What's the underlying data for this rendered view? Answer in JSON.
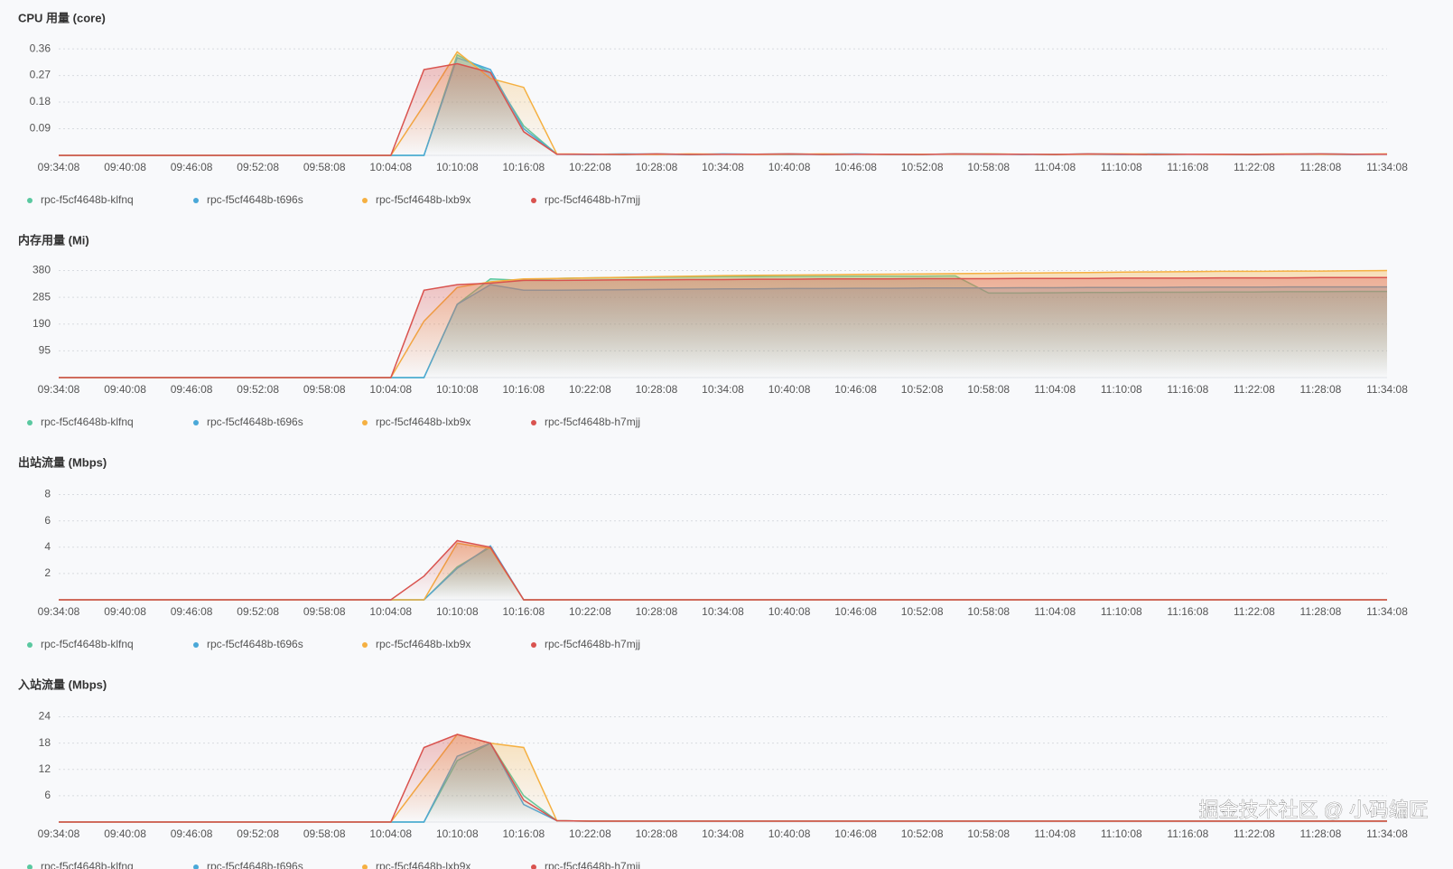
{
  "chart_data": [
    {
      "type": "line",
      "title": "CPU 用量 (core)",
      "categories": [
        "09:34:08",
        null,
        "09:40:08",
        null,
        "09:46:08",
        null,
        "09:52:08",
        null,
        "09:58:08",
        null,
        "10:04:08",
        null,
        "10:10:08",
        null,
        "10:16:08",
        null,
        "10:22:08",
        null,
        "10:28:08",
        null,
        "10:34:08",
        null,
        "10:40:08",
        null,
        "10:46:08",
        null,
        "10:52:08",
        null,
        "10:58:08",
        null,
        "11:04:08",
        null,
        "11:10:08",
        null,
        "11:16:08",
        null,
        "11:22:08",
        null,
        "11:28:08",
        null,
        "11:34:08"
      ],
      "ylim": [
        0,
        0.4
      ],
      "yticks": [
        0.09,
        0.18,
        0.27,
        0.36
      ],
      "grid": true,
      "series": [
        {
          "name": "rpc-f5cf4648b-klfnq",
          "color": "#5ac8a0",
          "values": [
            0,
            0,
            0,
            0,
            0,
            0,
            0,
            0,
            0,
            0,
            0,
            0,
            0.34,
            0.28,
            0.1,
            0.004,
            0.004,
            0.003,
            0.005,
            0.003,
            0.004,
            0.004,
            0.005,
            0.003,
            0.004,
            0.004,
            0.003,
            0.005,
            0.004,
            0.004,
            0.003,
            0.005,
            0.004,
            0.003,
            0.004,
            0.004,
            0.003,
            0.004,
            0.005,
            0.004,
            0.004
          ]
        },
        {
          "name": "rpc-f5cf4648b-t696s",
          "color": "#4aa8d8",
          "values": [
            0,
            0,
            0,
            0,
            0,
            0,
            0,
            0,
            0,
            0,
            0,
            0,
            0.33,
            0.29,
            0.09,
            0.004,
            0.003,
            0.005,
            0.004,
            0.003,
            0.005,
            0.004,
            0.003,
            0.004,
            0.005,
            0.003,
            0.004,
            0.004,
            0.005,
            0.003,
            0.004,
            0.004,
            0.003,
            0.005,
            0.004,
            0.004,
            0.003,
            0.004,
            0.004,
            0.003,
            0.004
          ]
        },
        {
          "name": "rpc-f5cf4648b-lxb9x",
          "color": "#f5b041",
          "values": [
            0,
            0,
            0,
            0,
            0,
            0,
            0,
            0,
            0,
            0,
            0,
            0.17,
            0.35,
            0.26,
            0.23,
            0.005,
            0.004,
            0.004,
            0.003,
            0.005,
            0.004,
            0.003,
            0.004,
            0.005,
            0.004,
            0.003,
            0.004,
            0.004,
            0.005,
            0.004,
            0.003,
            0.004,
            0.005,
            0.004,
            0.004,
            0.003,
            0.004,
            0.005,
            0.004,
            0.004,
            0.005
          ]
        },
        {
          "name": "rpc-f5cf4648b-h7mjj",
          "color": "#d9534f",
          "values": [
            0,
            0,
            0,
            0,
            0,
            0,
            0,
            0,
            0,
            0,
            0,
            0.29,
            0.31,
            0.28,
            0.08,
            0.004,
            0.004,
            0.003,
            0.005,
            0.003,
            0.004,
            0.004,
            0.005,
            0.003,
            0.004,
            0.004,
            0.003,
            0.005,
            0.004,
            0.004,
            0.003,
            0.005,
            0.004,
            0.003,
            0.004,
            0.004,
            0.003,
            0.004,
            0.005,
            0.004,
            0.004
          ]
        }
      ]
    },
    {
      "type": "line",
      "title": "内存用量 (Mi)",
      "categories": [
        "09:34:08",
        null,
        "09:40:08",
        null,
        "09:46:08",
        null,
        "09:52:08",
        null,
        "09:58:08",
        null,
        "10:04:08",
        null,
        "10:10:08",
        null,
        "10:16:08",
        null,
        "10:22:08",
        null,
        "10:28:08",
        null,
        "10:34:08",
        null,
        "10:40:08",
        null,
        "10:46:08",
        null,
        "10:52:08",
        null,
        "10:58:08",
        null,
        "11:04:08",
        null,
        "11:10:08",
        null,
        "11:16:08",
        null,
        "11:22:08",
        null,
        "11:28:08",
        null,
        "11:34:08"
      ],
      "ylim": [
        0,
        420
      ],
      "yticks": [
        95,
        190,
        285,
        380
      ],
      "grid": true,
      "series": [
        {
          "name": "rpc-f5cf4648b-klfnq",
          "color": "#5ac8a0",
          "values": [
            0,
            0,
            0,
            0,
            0,
            0,
            0,
            0,
            0,
            0,
            0,
            0,
            260,
            350,
            345,
            352,
            354,
            355,
            356,
            357,
            358,
            358,
            359,
            359,
            360,
            360,
            360,
            361,
            300,
            300,
            301,
            302,
            302,
            303,
            303,
            304,
            304,
            305,
            305,
            306,
            306
          ]
        },
        {
          "name": "rpc-f5cf4648b-t696s",
          "color": "#4aa8d8",
          "values": [
            0,
            0,
            0,
            0,
            0,
            0,
            0,
            0,
            0,
            0,
            0,
            0,
            260,
            330,
            310,
            310,
            311,
            312,
            313,
            314,
            315,
            315,
            316,
            316,
            317,
            317,
            318,
            318,
            318,
            319,
            319,
            320,
            320,
            320,
            321,
            321,
            321,
            322,
            322,
            322,
            322
          ]
        },
        {
          "name": "rpc-f5cf4648b-lxb9x",
          "color": "#f5b041",
          "values": [
            0,
            0,
            0,
            0,
            0,
            0,
            0,
            0,
            0,
            0,
            0,
            200,
            320,
            340,
            350,
            352,
            354,
            356,
            358,
            360,
            362,
            363,
            364,
            365,
            366,
            367,
            368,
            369,
            370,
            371,
            372,
            373,
            374,
            375,
            376,
            377,
            377,
            378,
            378,
            379,
            380
          ]
        },
        {
          "name": "rpc-f5cf4648b-h7mjj",
          "color": "#d9534f",
          "values": [
            0,
            0,
            0,
            0,
            0,
            0,
            0,
            0,
            0,
            0,
            0,
            310,
            330,
            335,
            345,
            345,
            346,
            347,
            347,
            348,
            348,
            349,
            349,
            350,
            350,
            350,
            351,
            351,
            351,
            352,
            352,
            352,
            353,
            353,
            353,
            354,
            354,
            354,
            355,
            355,
            355
          ]
        }
      ]
    },
    {
      "type": "line",
      "title": "出站流量 (Mbps)",
      "categories": [
        "09:34:08",
        null,
        "09:40:08",
        null,
        "09:46:08",
        null,
        "09:52:08",
        null,
        "09:58:08",
        null,
        "10:04:08",
        null,
        "10:10:08",
        null,
        "10:16:08",
        null,
        "10:22:08",
        null,
        "10:28:08",
        null,
        "10:34:08",
        null,
        "10:40:08",
        null,
        "10:46:08",
        null,
        "10:52:08",
        null,
        "10:58:08",
        null,
        "11:04:08",
        null,
        "11:10:08",
        null,
        "11:16:08",
        null,
        "11:22:08",
        null,
        "11:28:08",
        null,
        "11:34:08"
      ],
      "ylim": [
        0,
        9
      ],
      "yticks": [
        2,
        4,
        6,
        8
      ],
      "grid": true,
      "series": [
        {
          "name": "rpc-f5cf4648b-klfnq",
          "color": "#5ac8a0",
          "values": [
            0,
            0,
            0,
            0,
            0,
            0,
            0,
            0,
            0,
            0,
            0,
            0,
            2.5,
            4,
            0,
            0,
            0,
            0,
            0,
            0,
            0,
            0,
            0,
            0,
            0,
            0,
            0,
            0,
            0,
            0,
            0,
            0,
            0,
            0,
            0,
            0,
            0,
            0,
            0,
            0,
            0
          ]
        },
        {
          "name": "rpc-f5cf4648b-t696s",
          "color": "#4aa8d8",
          "values": [
            0,
            0,
            0,
            0,
            0,
            0,
            0,
            0,
            0,
            0,
            0,
            0,
            2.4,
            4.1,
            0,
            0,
            0,
            0,
            0,
            0,
            0,
            0,
            0,
            0,
            0,
            0,
            0,
            0,
            0,
            0,
            0,
            0,
            0,
            0,
            0,
            0,
            0,
            0,
            0,
            0,
            0
          ]
        },
        {
          "name": "rpc-f5cf4648b-lxb9x",
          "color": "#f5b041",
          "values": [
            0,
            0,
            0,
            0,
            0,
            0,
            0,
            0,
            0,
            0,
            0,
            0,
            4.3,
            3.9,
            0,
            0,
            0,
            0,
            0,
            0,
            0,
            0,
            0,
            0,
            0,
            0,
            0,
            0,
            0,
            0,
            0,
            0,
            0,
            0,
            0,
            0,
            0,
            0,
            0,
            0,
            0
          ]
        },
        {
          "name": "rpc-f5cf4648b-h7mjj",
          "color": "#d9534f",
          "values": [
            0,
            0,
            0,
            0,
            0,
            0,
            0,
            0,
            0,
            0,
            0,
            1.8,
            4.5,
            4,
            0,
            0,
            0,
            0,
            0,
            0,
            0,
            0,
            0,
            0,
            0,
            0,
            0,
            0,
            0,
            0,
            0,
            0,
            0,
            0,
            0,
            0,
            0,
            0,
            0,
            0,
            0
          ]
        }
      ]
    },
    {
      "type": "line",
      "title": "入站流量 (Mbps)",
      "categories": [
        "09:34:08",
        null,
        "09:40:08",
        null,
        "09:46:08",
        null,
        "09:52:08",
        null,
        "09:58:08",
        null,
        "10:04:08",
        null,
        "10:10:08",
        null,
        "10:16:08",
        null,
        "10:22:08",
        null,
        "10:28:08",
        null,
        "10:34:08",
        null,
        "10:40:08",
        null,
        "10:46:08",
        null,
        "10:52:08",
        null,
        "10:58:08",
        null,
        "11:04:08",
        null,
        "11:10:08",
        null,
        "11:16:08",
        null,
        "11:22:08",
        null,
        "11:28:08",
        null,
        "11:34:08"
      ],
      "ylim": [
        0,
        27
      ],
      "yticks": [
        6,
        12,
        18,
        24
      ],
      "grid": true,
      "series": [
        {
          "name": "rpc-f5cf4648b-klfnq",
          "color": "#5ac8a0",
          "values": [
            0,
            0,
            0,
            0,
            0,
            0,
            0,
            0,
            0,
            0,
            0,
            0,
            14,
            18,
            6,
            0.3,
            0.2,
            0.2,
            0.2,
            0.2,
            0.2,
            0.2,
            0.2,
            0.2,
            0.2,
            0.2,
            0.2,
            0.2,
            0.2,
            0.2,
            0.2,
            0.2,
            0.2,
            0.2,
            0.2,
            0.2,
            0.2,
            0.2,
            0.2,
            0.2,
            0.2
          ]
        },
        {
          "name": "rpc-f5cf4648b-t696s",
          "color": "#4aa8d8",
          "values": [
            0,
            0,
            0,
            0,
            0,
            0,
            0,
            0,
            0,
            0,
            0,
            0,
            15,
            18,
            4,
            0.3,
            0.2,
            0.2,
            0.2,
            0.2,
            0.2,
            0.2,
            0.2,
            0.2,
            0.2,
            0.2,
            0.2,
            0.2,
            0.2,
            0.2,
            0.2,
            0.2,
            0.2,
            0.2,
            0.2,
            0.2,
            0.2,
            0.2,
            0.2,
            0.2,
            0.2
          ]
        },
        {
          "name": "rpc-f5cf4648b-lxb9x",
          "color": "#f5b041",
          "values": [
            0,
            0,
            0,
            0,
            0,
            0,
            0,
            0,
            0,
            0,
            0,
            10,
            20,
            18,
            17,
            0.3,
            0.2,
            0.2,
            0.2,
            0.2,
            0.2,
            0.2,
            0.2,
            0.2,
            0.2,
            0.2,
            0.2,
            0.2,
            0.2,
            0.2,
            0.2,
            0.2,
            0.2,
            0.2,
            0.2,
            0.2,
            0.2,
            0.2,
            0.2,
            0.2,
            0.2
          ]
        },
        {
          "name": "rpc-f5cf4648b-h7mjj",
          "color": "#d9534f",
          "values": [
            0,
            0,
            0,
            0,
            0,
            0,
            0,
            0,
            0,
            0,
            0,
            17,
            20,
            18,
            5,
            0.3,
            0.2,
            0.2,
            0.2,
            0.2,
            0.2,
            0.2,
            0.2,
            0.2,
            0.2,
            0.2,
            0.2,
            0.2,
            0.2,
            0.2,
            0.2,
            0.2,
            0.2,
            0.2,
            0.2,
            0.2,
            0.2,
            0.2,
            0.2,
            0.2,
            0.2
          ]
        }
      ]
    }
  ],
  "watermark": "掘金技术社区 @ 小码编匠"
}
